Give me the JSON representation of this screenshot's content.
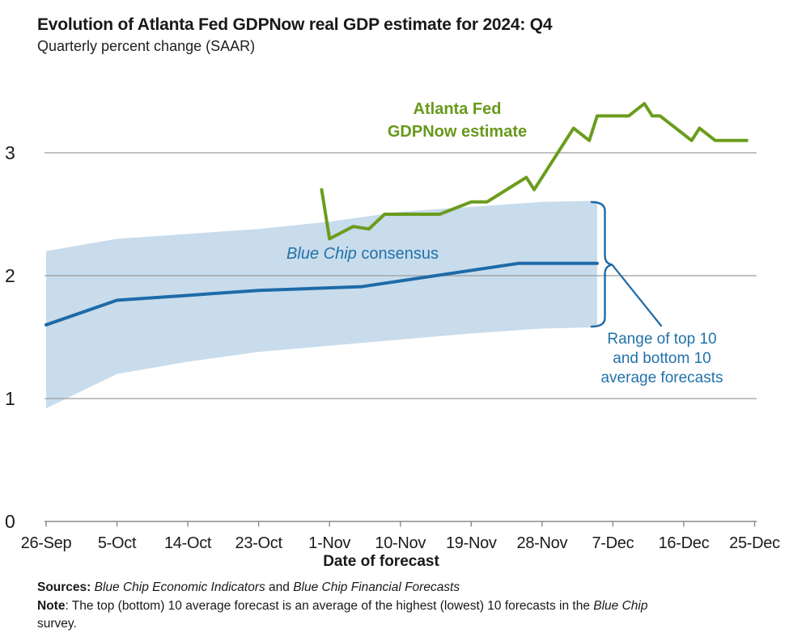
{
  "header": {
    "title": "Evolution of Atlanta Fed GDPNow real GDP estimate for 2024: Q4",
    "subtitle": "Quarterly percent change (SAAR)"
  },
  "chart_data": {
    "type": "line",
    "title": "Evolution of Atlanta Fed GDPNow real GDP estimate for 2024: Q4",
    "subtitle": "Quarterly percent change (SAAR)",
    "xlabel": "Date of forecast",
    "ylabel": "Quarterly percent change (SAAR)",
    "ylim": [
      0,
      3.6
    ],
    "grid": "horizontal",
    "x_ticks": [
      "26-Sep",
      "5-Oct",
      "14-Oct",
      "23-Oct",
      "1-Nov",
      "10-Nov",
      "19-Nov",
      "28-Nov",
      "7-Dec",
      "16-Dec",
      "25-Dec"
    ],
    "y_ticks": [
      0,
      1,
      2,
      3
    ],
    "series": [
      {
        "name": "Atlanta Fed GDPNow estimate",
        "color": "#6b9c1e",
        "points": [
          [
            "31-Oct",
            2.7
          ],
          [
            "1-Nov",
            2.3
          ],
          [
            "4-Nov",
            2.4
          ],
          [
            "6-Nov",
            2.38
          ],
          [
            "8-Nov",
            2.5
          ],
          [
            "15-Nov",
            2.5
          ],
          [
            "19-Nov",
            2.6
          ],
          [
            "21-Nov",
            2.6
          ],
          [
            "26-Nov",
            2.8
          ],
          [
            "27-Nov",
            2.7
          ],
          [
            "2-Dec",
            3.2
          ],
          [
            "4-Dec",
            3.1
          ],
          [
            "5-Dec",
            3.3
          ],
          [
            "9-Dec",
            3.3
          ],
          [
            "11-Dec",
            3.4
          ],
          [
            "12-Dec",
            3.3
          ],
          [
            "13-Dec",
            3.3
          ],
          [
            "17-Dec",
            3.1
          ],
          [
            "18-Dec",
            3.2
          ],
          [
            "20-Dec",
            3.1
          ],
          [
            "24-Dec",
            3.1
          ]
        ]
      },
      {
        "name": "Blue Chip consensus",
        "color": "#1e6aa7",
        "points": [
          [
            "26-Sep",
            1.6
          ],
          [
            "5-Oct",
            1.8
          ],
          [
            "14-Oct",
            1.84
          ],
          [
            "23-Oct",
            1.88
          ],
          [
            "5-Nov",
            1.91
          ],
          [
            "25-Nov",
            2.1
          ],
          [
            "5-Dec",
            2.1
          ]
        ]
      }
    ],
    "band": {
      "name": "Range of top 10 and bottom 10 average forecasts",
      "color": "#c8dcec",
      "dates": [
        "26-Sep",
        "5-Oct",
        "14-Oct",
        "23-Oct",
        "1-Nov",
        "10-Nov",
        "19-Nov",
        "28-Nov",
        "5-Dec"
      ],
      "top": [
        2.2,
        2.3,
        2.34,
        2.38,
        2.44,
        2.52,
        2.56,
        2.6,
        2.61
      ],
      "bottom": [
        0.92,
        1.2,
        1.3,
        1.38,
        1.43,
        1.48,
        1.53,
        1.57,
        1.58
      ]
    }
  },
  "annotations": {
    "gdpnow_line1": "Atlanta Fed",
    "gdpnow_line2": "GDPNow estimate",
    "blue_chip_italic": "Blue Chip",
    "blue_chip_rest": " consensus",
    "range_line1": "Range of top 10",
    "range_line2": "and bottom 10",
    "range_line3": "average forecasts"
  },
  "footer": {
    "sources_label": "Sources:",
    "sources_italic1": " Blue Chip Economic Indicators",
    "sources_and": " and ",
    "sources_italic2": "Blue Chip Financial Forecasts",
    "note_label": "Note",
    "note_text": ": The top (bottom) 10 average forecast is an average of the highest (lowest) 10 forecasts in the ",
    "note_italic": "Blue Chip",
    "note_line2": "survey."
  },
  "colors": {
    "gdpnow_green": "#6b9c1e",
    "blue_chip_blue": "#1e6aa7",
    "annotation_blue": "#2272a9",
    "band_fill": "#c8dcec",
    "gridline": "#9c9c9c",
    "axis": "#8a8a8a",
    "text": "#1b1b1b"
  }
}
